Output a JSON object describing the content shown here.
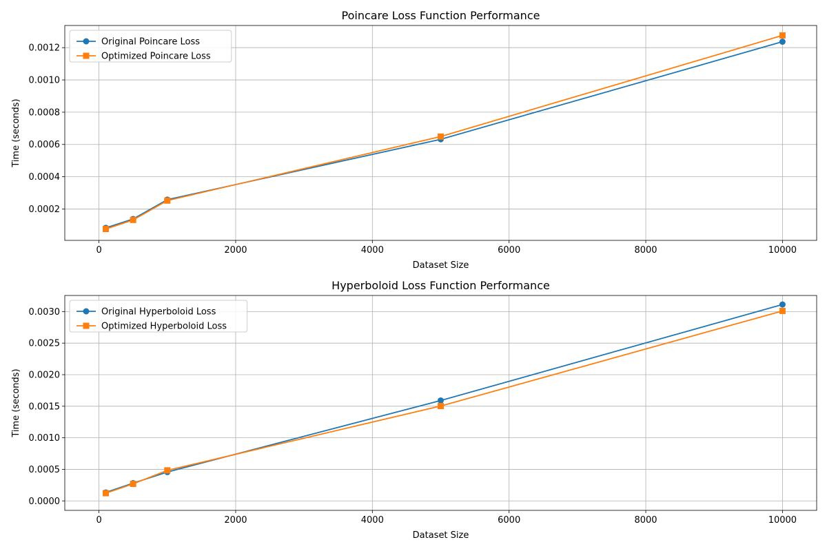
{
  "chart_data": [
    {
      "type": "line",
      "title": "Poincare Loss Function Performance",
      "xlabel": "Dataset Size",
      "ylabel": "Time (seconds)",
      "xlim": [
        -500,
        10500
      ],
      "ylim": [
        5.5e-06,
        0.0013375
      ],
      "xticks": [
        0,
        2000,
        4000,
        6000,
        8000,
        10000
      ],
      "xtick_labels": [
        "0",
        "2000",
        "4000",
        "6000",
        "8000",
        "10000"
      ],
      "yticks": [
        0.0002,
        0.0004,
        0.0006,
        0.0008,
        0.001,
        0.0012
      ],
      "ytick_labels": [
        "0.0002",
        "0.0004",
        "0.0006",
        "0.0008",
        "0.0010",
        "0.0012"
      ],
      "grid": true,
      "legend_position": "upper-left",
      "x": [
        100,
        500,
        1000,
        5000,
        10000
      ],
      "series": [
        {
          "name": "Original Poincare Loss",
          "color": "#1f77b4",
          "marker": "circle",
          "values": [
            8.3e-05,
            0.000138,
            0.000258,
            0.000632,
            0.001237
          ]
        },
        {
          "name": "Optimized Poincare Loss",
          "color": "#ff7f0e",
          "marker": "square",
          "values": [
            7.6e-05,
            0.000132,
            0.000252,
            0.000649,
            0.001276
          ]
        }
      ]
    },
    {
      "type": "line",
      "title": "Hyperboloid Loss Function Performance",
      "xlabel": "Dataset Size",
      "ylabel": "Time (seconds)",
      "xlim": [
        -500,
        10500
      ],
      "ylim": [
        -0.00015,
        0.003255
      ],
      "xticks": [
        0,
        2000,
        4000,
        6000,
        8000,
        10000
      ],
      "xtick_labels": [
        "0",
        "2000",
        "4000",
        "6000",
        "8000",
        "10000"
      ],
      "yticks": [
        0.0,
        0.0005,
        0.001,
        0.0015,
        0.002,
        0.0025,
        0.003
      ],
      "ytick_labels": [
        "0.0000",
        "0.0005",
        "0.0010",
        "0.0015",
        "0.0020",
        "0.0025",
        "0.0030"
      ],
      "grid": true,
      "legend_position": "upper-left",
      "x": [
        100,
        500,
        1000,
        5000,
        10000
      ],
      "series": [
        {
          "name": "Original Hyperboloid Loss",
          "color": "#1f77b4",
          "marker": "circle",
          "values": [
            0.000134,
            0.000281,
            0.000457,
            0.001591,
            0.003112
          ]
        },
        {
          "name": "Optimized Hyperboloid Loss",
          "color": "#ff7f0e",
          "marker": "square",
          "values": [
            0.000122,
            0.00027,
            0.000484,
            0.001503,
            0.00301
          ]
        }
      ]
    }
  ]
}
